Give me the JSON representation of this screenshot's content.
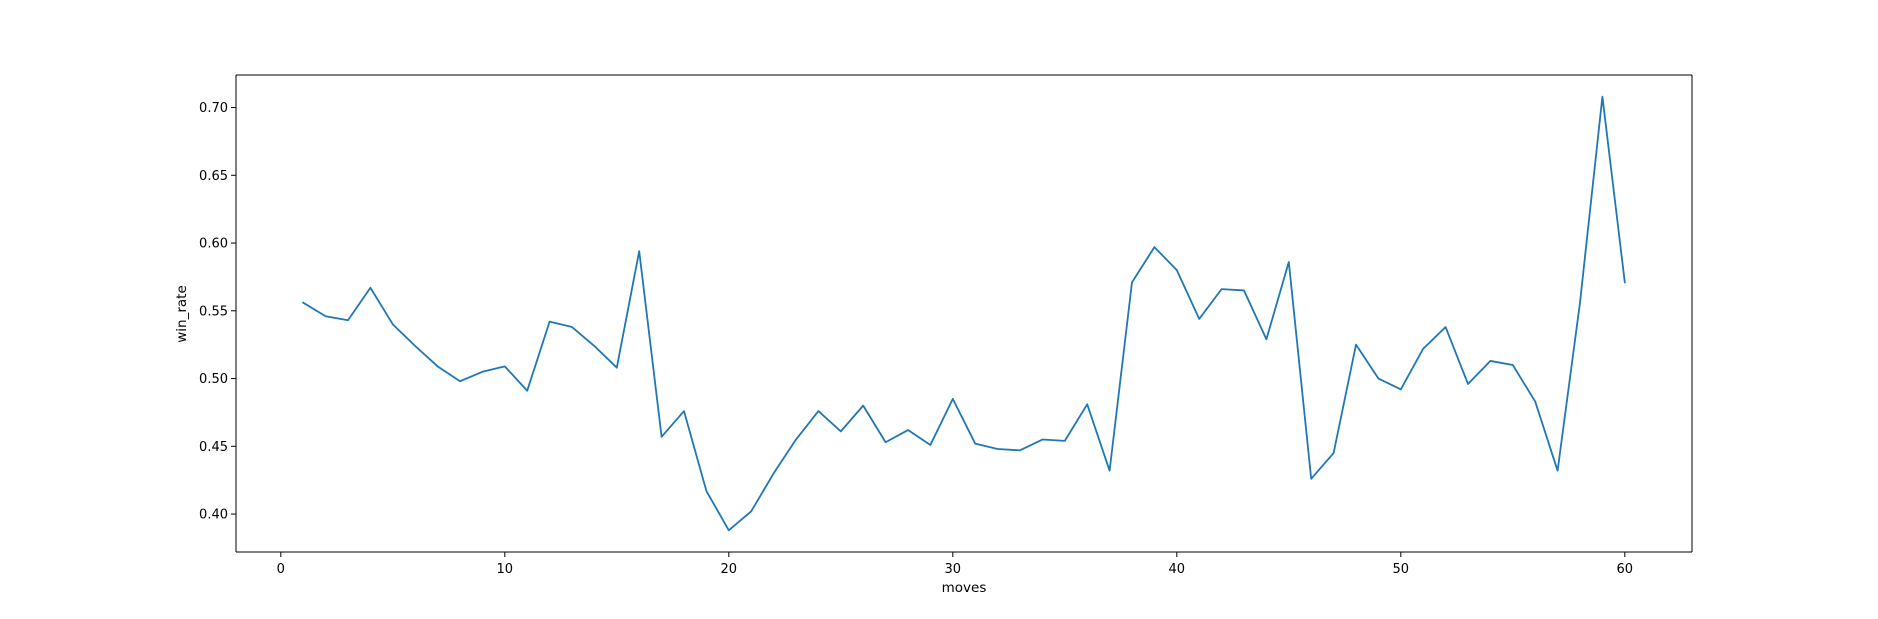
{
  "chart_data": {
    "type": "line",
    "title": "",
    "xlabel": "moves",
    "ylabel": "win_rate",
    "xlim": [
      -2.0,
      63.0
    ],
    "ylim": [
      0.372,
      0.724
    ],
    "x_ticks": [
      0,
      10,
      20,
      30,
      40,
      50,
      60
    ],
    "y_ticks": [
      0.4,
      0.45,
      0.5,
      0.55,
      0.6,
      0.65,
      0.7
    ],
    "grid": false,
    "legend": "none",
    "series": [
      {
        "color": "#1f77b4",
        "x": [
          1,
          2,
          3,
          4,
          5,
          6,
          7,
          8,
          9,
          10,
          11,
          12,
          13,
          14,
          15,
          16,
          17,
          18,
          19,
          20,
          21,
          22,
          23,
          24,
          25,
          26,
          27,
          28,
          29,
          30,
          31,
          32,
          33,
          34,
          35,
          36,
          37,
          38,
          39,
          40,
          41,
          42,
          43,
          44,
          45,
          46,
          47,
          48,
          49,
          50,
          51,
          52,
          53,
          54,
          55,
          56,
          57,
          58,
          59,
          60
        ],
        "values": [
          0.556,
          0.546,
          0.543,
          0.567,
          0.54,
          0.524,
          0.509,
          0.498,
          0.505,
          0.509,
          0.491,
          0.542,
          0.538,
          0.524,
          0.508,
          0.594,
          0.457,
          0.476,
          0.417,
          0.388,
          0.402,
          0.43,
          0.455,
          0.476,
          0.461,
          0.48,
          0.453,
          0.462,
          0.451,
          0.485,
          0.452,
          0.448,
          0.447,
          0.455,
          0.454,
          0.481,
          0.432,
          0.571,
          0.597,
          0.58,
          0.544,
          0.566,
          0.565,
          0.529,
          0.586,
          0.426,
          0.445,
          0.525,
          0.5,
          0.492,
          0.522,
          0.538,
          0.496,
          0.513,
          0.51,
          0.483,
          0.432,
          0.556,
          0.708,
          0.571
        ]
      }
    ]
  }
}
